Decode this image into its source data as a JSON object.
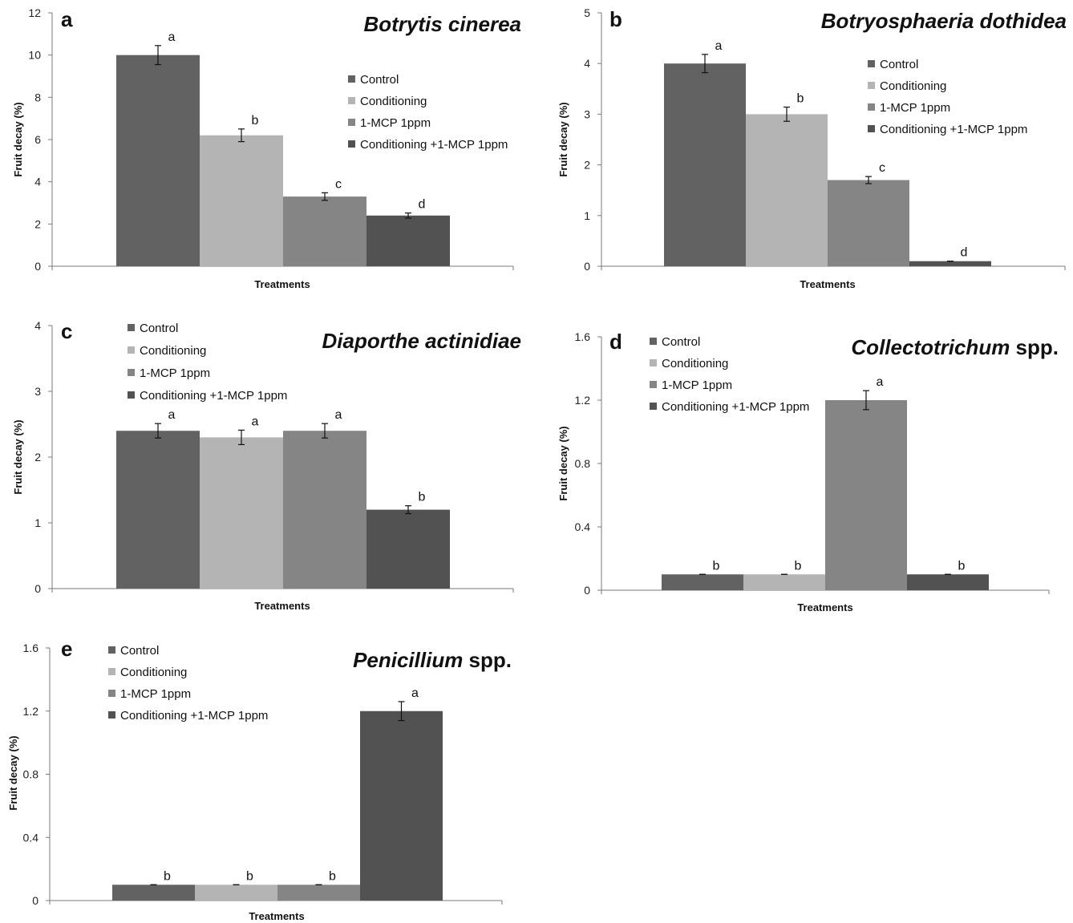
{
  "legend_labels": [
    "Control",
    "Conditioning",
    "1-MCP 1ppm",
    "Conditioning +1-MCP 1ppm"
  ],
  "chart_data": [
    {
      "panel": "a",
      "type": "bar",
      "title": "Botrytis cinerea",
      "title_italic_part": "Botrytis cinerea",
      "title_plain_part": "",
      "xlabel": "Treatments",
      "ylabel": "Fruit decay (%)",
      "ylim": [
        0,
        12
      ],
      "yticks": [
        "0",
        "2",
        "4",
        "6",
        "8",
        "10",
        "12"
      ],
      "legend_position": "top-right",
      "series": [
        {
          "name": "Control",
          "color": "#626262",
          "value": 10.0,
          "error": 0.45,
          "letter": "a"
        },
        {
          "name": "Conditioning",
          "color": "#b4b4b4",
          "value": 6.2,
          "error": 0.3,
          "letter": "b"
        },
        {
          "name": "1-MCP 1ppm",
          "color": "#858585",
          "value": 3.3,
          "error": 0.18,
          "letter": "c"
        },
        {
          "name": "Conditioning +1-MCP 1ppm",
          "color": "#525252",
          "value": 2.4,
          "error": 0.12,
          "letter": "d"
        }
      ]
    },
    {
      "panel": "b",
      "type": "bar",
      "title": "Botryosphaeria dothidea",
      "title_italic_part": "Botryosphaeria dothidea",
      "title_plain_part": "",
      "xlabel": "Treatments",
      "ylabel": "Fruit decay (%)",
      "ylim": [
        0,
        5
      ],
      "yticks": [
        "0",
        "1",
        "2",
        "3",
        "4",
        "5"
      ],
      "legend_position": "top-right",
      "series": [
        {
          "name": "Control",
          "color": "#626262",
          "value": 4.0,
          "error": 0.18,
          "letter": "a"
        },
        {
          "name": "Conditioning",
          "color": "#b4b4b4",
          "value": 3.0,
          "error": 0.14,
          "letter": "b"
        },
        {
          "name": "1-MCP 1ppm",
          "color": "#858585",
          "value": 1.7,
          "error": 0.07,
          "letter": "c"
        },
        {
          "name": "Conditioning +1-MCP 1ppm",
          "color": "#525252",
          "value": 0.1,
          "error": 0.0,
          "letter": "d"
        }
      ]
    },
    {
      "panel": "c",
      "type": "bar",
      "title": "Diaporthe actinidiae",
      "title_italic_part": "Diaporthe actinidiae",
      "title_plain_part": "",
      "xlabel": "Treatments",
      "ylabel": "Fruit decay (%)",
      "ylim": [
        0,
        4
      ],
      "yticks": [
        "0",
        "1",
        "2",
        "3",
        "4"
      ],
      "legend_position": "top-left",
      "series": [
        {
          "name": "Control",
          "color": "#626262",
          "value": 2.4,
          "error": 0.11,
          "letter": "a"
        },
        {
          "name": "Conditioning",
          "color": "#b4b4b4",
          "value": 2.3,
          "error": 0.11,
          "letter": "a"
        },
        {
          "name": "1-MCP 1ppm",
          "color": "#858585",
          "value": 2.4,
          "error": 0.11,
          "letter": "a"
        },
        {
          "name": "Conditioning +1-MCP 1ppm",
          "color": "#525252",
          "value": 1.2,
          "error": 0.06,
          "letter": "b"
        }
      ]
    },
    {
      "panel": "d",
      "type": "bar",
      "title": "Collectotrichum spp.",
      "title_italic_part": "Collectotrichum",
      "title_plain_part": " spp.",
      "xlabel": "Treatments",
      "ylabel": "Fruit decay (%)",
      "ylim": [
        0,
        1.6
      ],
      "yticks": [
        "0",
        "0.4",
        "0.8",
        "1.2",
        "1.6"
      ],
      "legend_position": "top-left",
      "series": [
        {
          "name": "Control",
          "color": "#626262",
          "value": 0.1,
          "error": 0.0,
          "letter": "b"
        },
        {
          "name": "Conditioning",
          "color": "#b4b4b4",
          "value": 0.1,
          "error": 0.0,
          "letter": "b"
        },
        {
          "name": "1-MCP 1ppm",
          "color": "#858585",
          "value": 1.2,
          "error": 0.06,
          "letter": "a"
        },
        {
          "name": "Conditioning +1-MCP 1ppm",
          "color": "#525252",
          "value": 0.1,
          "error": 0.0,
          "letter": "b"
        }
      ]
    },
    {
      "panel": "e",
      "type": "bar",
      "title": "Penicillium spp.",
      "title_italic_part": "Penicillium",
      "title_plain_part": " spp.",
      "xlabel": "Treatments",
      "ylabel": "Fruit decay (%)",
      "ylim": [
        0,
        1.6
      ],
      "yticks": [
        "0",
        "0.4",
        "0.8",
        "1.2",
        "1.6"
      ],
      "legend_position": "top-left",
      "series": [
        {
          "name": "Control",
          "color": "#626262",
          "value": 0.1,
          "error": 0.0,
          "letter": "b"
        },
        {
          "name": "Conditioning",
          "color": "#b4b4b4",
          "value": 0.1,
          "error": 0.0,
          "letter": "b"
        },
        {
          "name": "1-MCP 1ppm",
          "color": "#858585",
          "value": 0.1,
          "error": 0.0,
          "letter": "b"
        },
        {
          "name": "Conditioning +1-MCP 1ppm",
          "color": "#525252",
          "value": 1.2,
          "error": 0.06,
          "letter": "a"
        }
      ]
    }
  ]
}
